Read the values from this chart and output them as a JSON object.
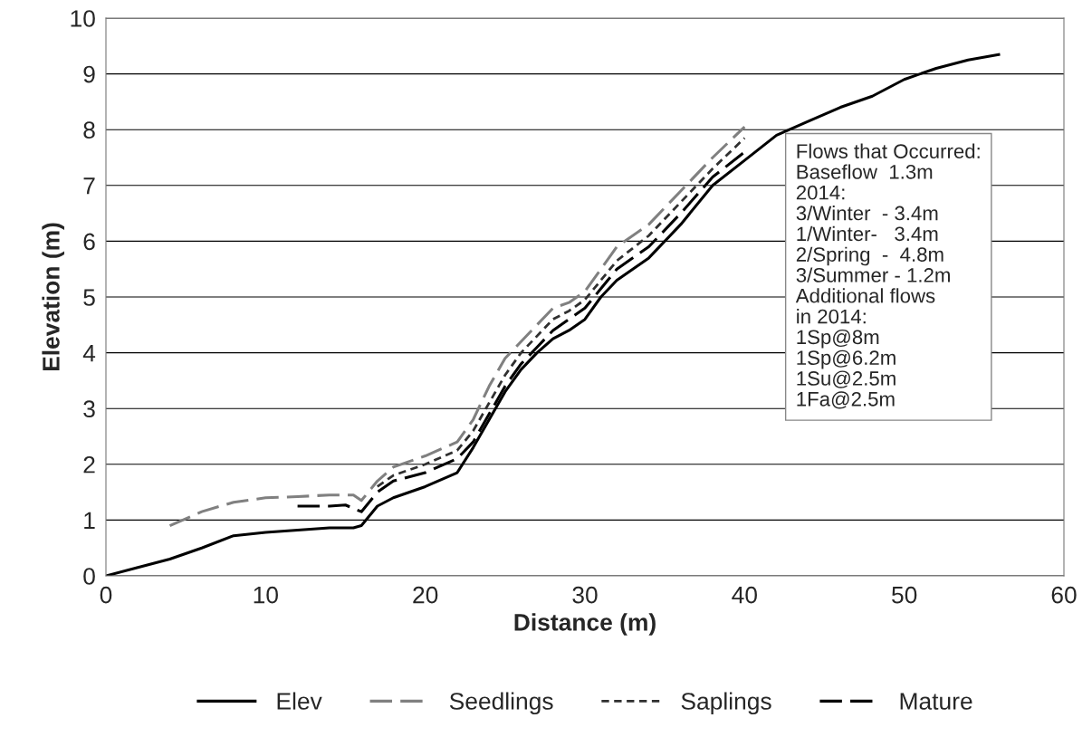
{
  "chart_data": {
    "type": "line",
    "xlabel": "Distance (m)",
    "ylabel": "Elevation (m)",
    "xlim": [
      0,
      60
    ],
    "xticks": [
      0,
      10,
      20,
      30,
      40,
      50,
      60
    ],
    "ylim": [
      0,
      10
    ],
    "yticks": [
      0,
      1,
      2,
      3,
      4,
      5,
      6,
      7,
      8,
      9,
      10
    ],
    "grid": "y",
    "legend": "bottom",
    "series": [
      {
        "name": "Elev",
        "color": "#000000",
        "line_style": "solid",
        "x": [
          0,
          2,
          4,
          6,
          8,
          10,
          12,
          14,
          15.5,
          16,
          17,
          18,
          20,
          22,
          23,
          24,
          25,
          26,
          27,
          28,
          29,
          30,
          31,
          32,
          34,
          36,
          38,
          40,
          42,
          44,
          46,
          48,
          50,
          52,
          54,
          56
        ],
        "values": [
          0,
          0.15,
          0.3,
          0.5,
          0.72,
          0.78,
          0.82,
          0.86,
          0.86,
          0.9,
          1.25,
          1.4,
          1.6,
          1.85,
          2.3,
          2.8,
          3.3,
          3.7,
          4.0,
          4.25,
          4.4,
          4.6,
          5.0,
          5.3,
          5.7,
          6.3,
          7.0,
          7.45,
          7.9,
          8.15,
          8.4,
          8.6,
          8.9,
          9.1,
          9.25,
          9.35
        ]
      },
      {
        "name": "Seedlings",
        "color": "#808080",
        "line_style": "dashed",
        "x": [
          4,
          6,
          8,
          10,
          12,
          14,
          15.5,
          16,
          17,
          18,
          20,
          22,
          23,
          24,
          25,
          26,
          27,
          28,
          29,
          30,
          31,
          32,
          34,
          36,
          38,
          40
        ],
        "values": [
          0.9,
          1.15,
          1.32,
          1.4,
          1.42,
          1.45,
          1.45,
          1.35,
          1.7,
          1.95,
          2.15,
          2.4,
          2.8,
          3.4,
          3.9,
          4.2,
          4.5,
          4.8,
          4.9,
          5.1,
          5.5,
          5.9,
          6.3,
          6.9,
          7.5,
          8.05
        ]
      },
      {
        "name": "Saplings",
        "color": "#303030",
        "line_style": "dotted",
        "x": [
          17,
          18,
          20,
          22,
          23,
          24,
          25,
          26,
          27,
          28,
          29,
          30,
          31,
          32,
          34,
          36,
          38,
          40
        ],
        "values": [
          1.6,
          1.8,
          2.0,
          2.25,
          2.6,
          3.1,
          3.6,
          4.0,
          4.3,
          4.6,
          4.75,
          4.95,
          5.3,
          5.65,
          6.1,
          6.7,
          7.3,
          7.85
        ]
      },
      {
        "name": "Mature",
        "color": "#000000",
        "line_style": "dashed",
        "x": [
          12,
          13,
          14,
          15,
          16,
          17,
          18,
          20,
          22,
          23,
          24,
          25,
          26,
          27,
          28,
          29,
          30,
          31,
          32,
          34,
          36,
          38,
          40
        ],
        "values": [
          1.25,
          1.25,
          1.25,
          1.27,
          1.15,
          1.5,
          1.7,
          1.85,
          2.1,
          2.4,
          2.9,
          3.4,
          3.8,
          4.1,
          4.4,
          4.6,
          4.8,
          5.15,
          5.5,
          5.9,
          6.5,
          7.15,
          7.6
        ]
      }
    ],
    "annotations": [
      "Flows that Occurred:",
      "Baseflow  1.3m",
      "2014:",
      "3/Winter  - 3.4m",
      "1/Winter-   3.4m",
      "2/Spring  -  4.8m",
      "3/Summer - 1.2m",
      "Additional flows",
      "in 2014:",
      "1Sp@8m",
      "1Sp@6.2m",
      "1Su@2.5m",
      "1Fa@2.5m"
    ]
  }
}
